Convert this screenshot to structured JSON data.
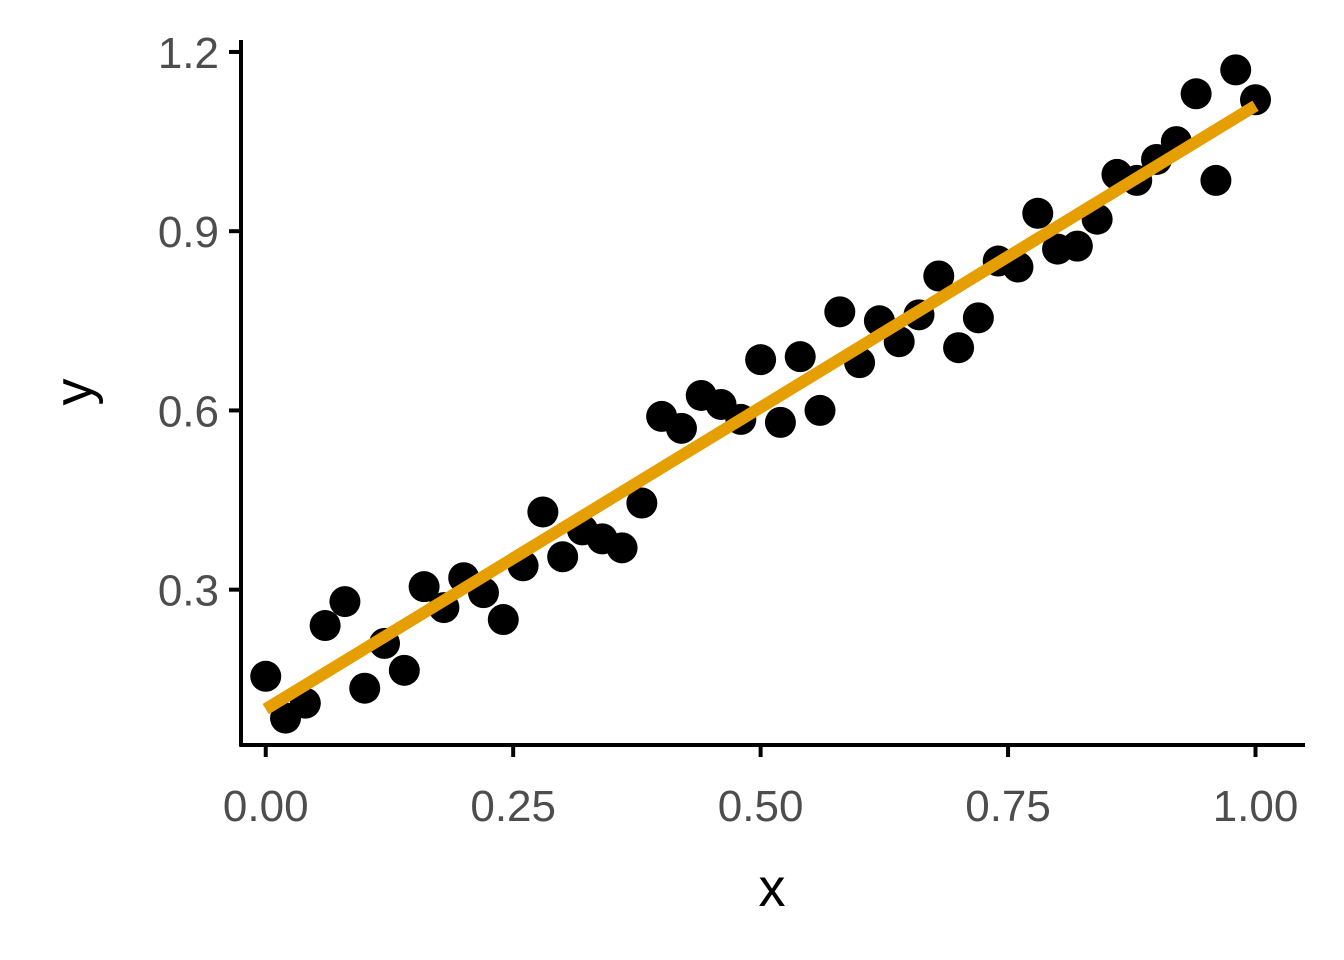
{
  "chart_data": {
    "type": "scatter",
    "title": "",
    "xlabel": "x",
    "ylabel": "y",
    "xlim": [
      -0.025,
      1.05
    ],
    "ylim": [
      0.04,
      1.22
    ],
    "x_ticks": [
      0,
      0.25,
      0.5,
      0.75,
      1
    ],
    "x_tick_labels": [
      "0.00",
      "0.25",
      "0.50",
      "0.75",
      "1.00"
    ],
    "y_ticks": [
      0.3,
      0.6,
      0.9,
      1.2
    ],
    "y_tick_labels": [
      "0.3",
      "0.6",
      "0.9",
      "1.2"
    ],
    "grid": false,
    "points": {
      "x": [
        0.0,
        0.02,
        0.04,
        0.06,
        0.08,
        0.1,
        0.12,
        0.14,
        0.16,
        0.18,
        0.2,
        0.22,
        0.24,
        0.26,
        0.28,
        0.3,
        0.32,
        0.34,
        0.36,
        0.38,
        0.4,
        0.42,
        0.44,
        0.46,
        0.48,
        0.5,
        0.52,
        0.54,
        0.56,
        0.58,
        0.6,
        0.62,
        0.64,
        0.66,
        0.68,
        0.7,
        0.72,
        0.74,
        0.76,
        0.78,
        0.8,
        0.82,
        0.84,
        0.86,
        0.88,
        0.9,
        0.92,
        0.94,
        0.96,
        0.98,
        1.0
      ],
      "y": [
        0.155,
        0.085,
        0.11,
        0.24,
        0.28,
        0.135,
        0.21,
        0.165,
        0.305,
        0.27,
        0.32,
        0.295,
        0.25,
        0.34,
        0.43,
        0.355,
        0.4,
        0.385,
        0.37,
        0.445,
        0.59,
        0.57,
        0.625,
        0.61,
        0.585,
        0.685,
        0.58,
        0.69,
        0.6,
        0.765,
        0.68,
        0.75,
        0.715,
        0.76,
        0.825,
        0.705,
        0.755,
        0.85,
        0.84,
        0.93,
        0.87,
        0.875,
        0.92,
        0.995,
        0.985,
        1.02,
        1.05,
        1.13,
        0.985,
        1.17,
        1.12
      ],
      "color": "#000000"
    },
    "fit_line": {
      "x": [
        0.0,
        1.0
      ],
      "y": [
        0.1,
        1.11
      ],
      "color": "#E69F00"
    }
  }
}
